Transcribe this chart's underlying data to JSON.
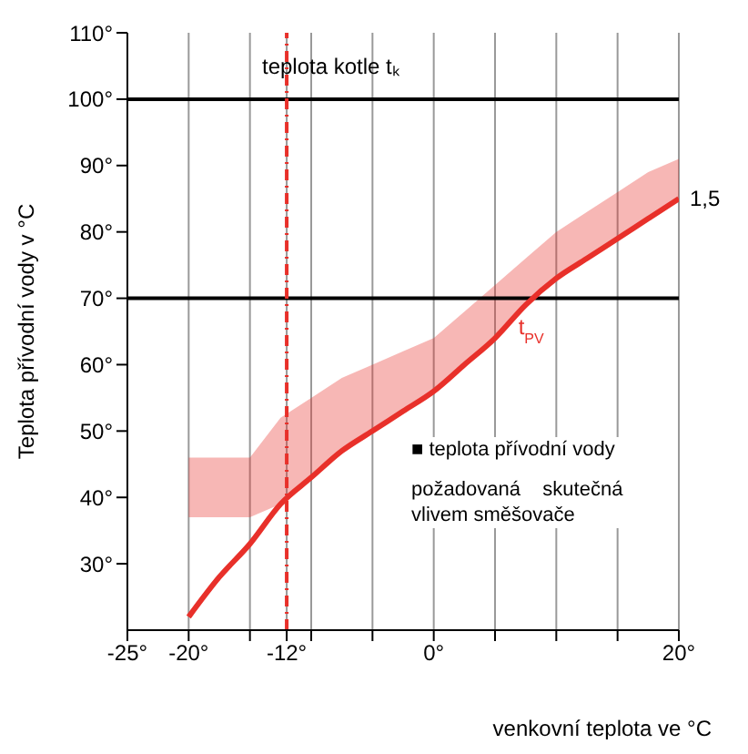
{
  "chart_data": {
    "type": "line",
    "xlabel": "venkovní teplota ve °C",
    "ylabel": "Teplota přívodní vody v °C",
    "x": [
      -20,
      -17.5,
      -15,
      -12.5,
      -10,
      -7.5,
      -5,
      -2.5,
      0,
      2.5,
      5,
      7.5,
      10,
      12.5,
      15,
      17.5,
      20
    ],
    "series": [
      {
        "color": "#e8302a",
        "values": [
          22,
          28,
          33,
          39,
          43,
          47,
          50,
          53,
          56,
          60,
          64,
          69,
          73,
          76,
          79,
          82,
          85
        ],
        "lower": [
          37,
          37,
          37,
          39,
          43,
          47,
          50,
          53,
          56,
          60,
          64,
          69,
          73,
          76,
          79,
          82,
          85
        ],
        "upper": [
          46,
          46,
          46,
          52,
          55,
          58,
          60,
          62,
          64,
          68,
          72,
          76,
          80,
          83,
          86,
          89,
          91
        ]
      }
    ],
    "xlim": [
      -25,
      20
    ],
    "ylim": [
      20,
      110
    ],
    "xticks": [
      {
        "value": -25,
        "label": "-25°"
      },
      {
        "value": -20,
        "label": "-20°"
      },
      {
        "value": -15,
        "label": null
      },
      {
        "value": -12,
        "label": "-12°"
      },
      {
        "value": -10,
        "label": null
      },
      {
        "value": -5,
        "label": null
      },
      {
        "value": 0,
        "label": "0°"
      },
      {
        "value": 5,
        "label": null
      },
      {
        "value": 10,
        "label": null
      },
      {
        "value": 15,
        "label": null
      },
      {
        "value": 20,
        "label": "20°"
      }
    ],
    "yticks": [
      {
        "value": 30,
        "label": "30°"
      },
      {
        "value": 40,
        "label": "40°"
      },
      {
        "value": 50,
        "label": "50°"
      },
      {
        "value": 60,
        "label": "60°"
      },
      {
        "value": 70,
        "label": "70°"
      },
      {
        "value": 80,
        "label": "80°"
      },
      {
        "value": 90,
        "label": "90°"
      },
      {
        "value": 100,
        "label": "100°"
      },
      {
        "value": 110,
        "label": "110°"
      }
    ],
    "grid": "x",
    "legend": false,
    "line_style": "solid",
    "marker": "none",
    "ref_lines": [
      {
        "axis": "y",
        "value": 100,
        "label": "teplota kotle tₖ",
        "color": "#000000"
      },
      {
        "axis": "y",
        "value": 70,
        "color": "#000000"
      },
      {
        "axis": "x",
        "value": -12,
        "color": "#e8302a",
        "line_style": "dashed"
      }
    ],
    "annotations": [
      {
        "text": "t$_{PV}$",
        "x": 7.5,
        "y": 69
      },
      {
        "text": "1,5",
        "x": 20,
        "y": 85
      },
      "■ teplota přívodní vody",
      "požadovaná    skutečná",
      "vlivem směšovače"
    ]
  }
}
